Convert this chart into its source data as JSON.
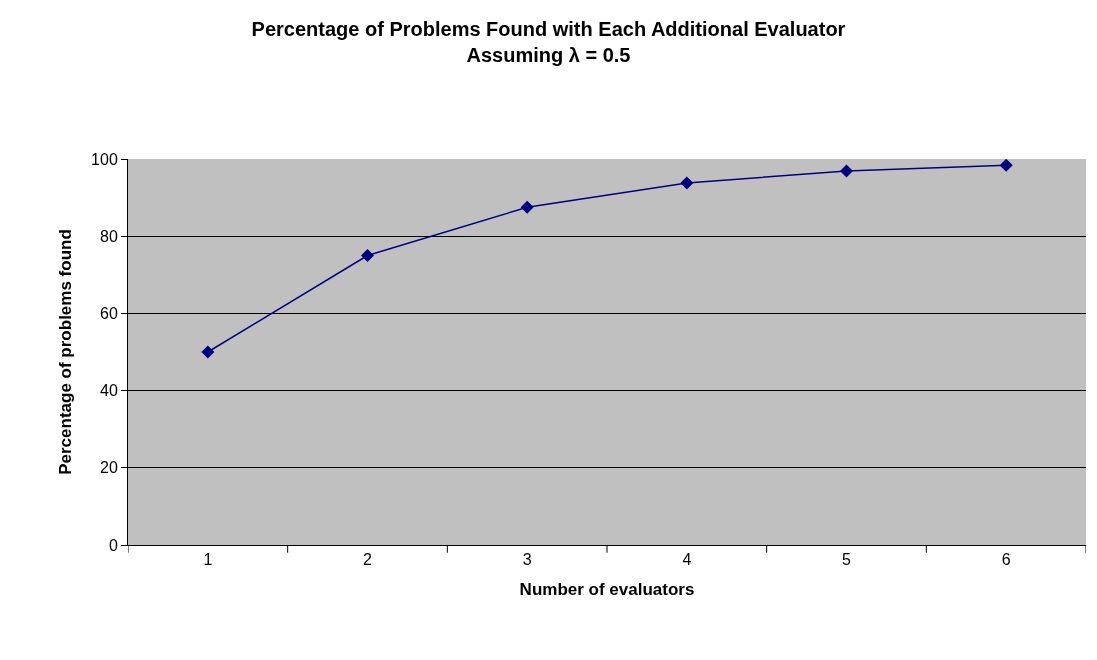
{
  "chart_data": {
    "type": "line",
    "title": "Percentage of Problems Found with Each Additional Evaluator",
    "subtitle": "Assuming λ = 0.5",
    "xlabel": "Number of evaluators",
    "ylabel": "Percentage of problems found",
    "categories": [
      "1",
      "2",
      "3",
      "4",
      "5",
      "6"
    ],
    "series": [
      {
        "color": "#000080",
        "values": [
          50,
          75,
          87.5,
          93.8,
          96.9,
          98.4
        ]
      }
    ],
    "ylim": [
      0,
      100
    ],
    "yticks": [
      0,
      20,
      40,
      60,
      80,
      100
    ],
    "grid": "y",
    "marker": "diamond",
    "line_style": "solid"
  }
}
